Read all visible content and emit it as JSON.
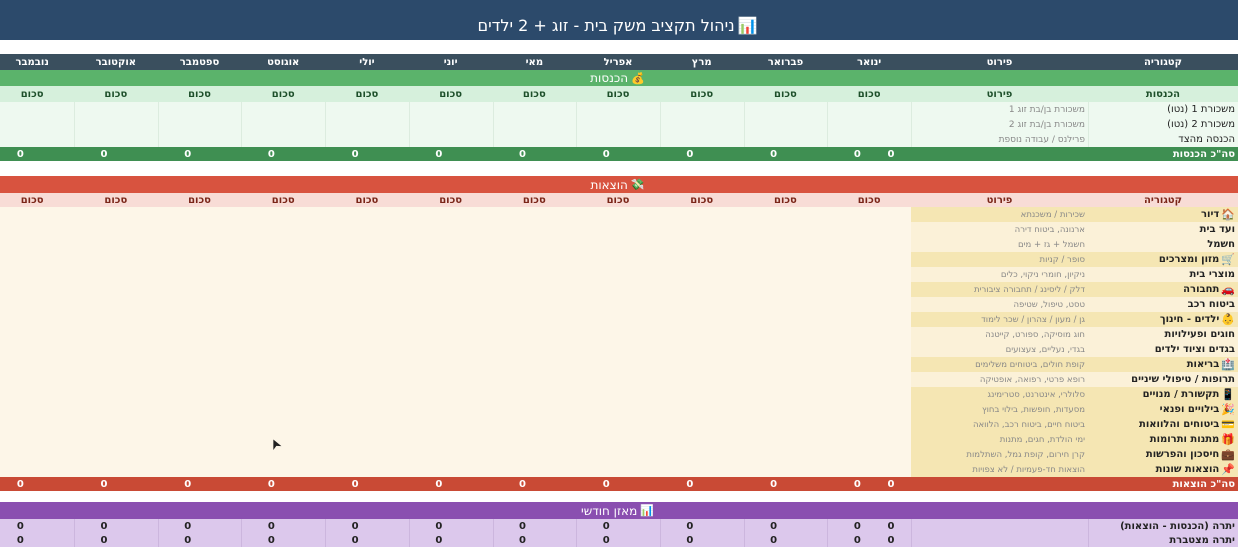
{
  "title": {
    "text": "ניהול תקציב משק בית - זוג + 2 ילדים",
    "icon": "bar-chart-icon"
  },
  "months": [
    "ינואר",
    "פברואר",
    "מרץ",
    "אפריל",
    "מאי",
    "יוני",
    "יולי",
    "אוגוסט",
    "ספטמבר",
    "אוקטובר",
    "נובמבר"
  ],
  "header": {
    "category": "קטגוריה",
    "detail": "פירוט"
  },
  "income": {
    "title": "הכנסות",
    "icon": "money-bag-icon",
    "subheader": {
      "category": "הכנסות",
      "detail": "פירוט",
      "amount": "סכום"
    },
    "rows": [
      {
        "name": "משכורת 1 (נטו)",
        "detail": "משכורת בן/בת זוג 1",
        "icon": ""
      },
      {
        "name": "משכורת 2 (נטו)",
        "detail": "משכורת בן/בת זוג 2",
        "icon": ""
      },
      {
        "name": "הכנסה מהצד",
        "detail": "פרילנס / עבודה נוספת",
        "icon": ""
      }
    ],
    "total_label": "סה\"כ הכנסות",
    "total_value": "0"
  },
  "expenses": {
    "title": "הוצאות",
    "icon": "money-wings-icon",
    "subheader": {
      "category": "קטגוריה",
      "detail": "פירוט",
      "amount": "סכום"
    },
    "rows": [
      {
        "name": "דיור",
        "detail": "שכירות / משכנתא",
        "icon": "house-icon",
        "glyph": "🏠",
        "highlight": true
      },
      {
        "name": "ועד בית",
        "detail": "ארנונה, ביטוח דירה",
        "icon": "",
        "glyph": "",
        "highlight": false
      },
      {
        "name": "חשמל",
        "detail": "חשמל + גז + מים",
        "icon": "",
        "glyph": "",
        "highlight": false
      },
      {
        "name": "מזון ומצרכים",
        "detail": "סופר / קניות",
        "icon": "shopping-cart-icon",
        "glyph": "🛒",
        "highlight": true
      },
      {
        "name": "מוצרי בית",
        "detail": "ניקיון, חומרי ניקוי, כלים",
        "icon": "",
        "glyph": "",
        "highlight": false
      },
      {
        "name": "תחבורה",
        "detail": "דלק / ליסינג / תחבורה ציבורית",
        "icon": "car-icon",
        "glyph": "🚗",
        "highlight": true
      },
      {
        "name": "ביטוח רכב",
        "detail": "טסט, טיפול, שטיפה",
        "icon": "",
        "glyph": "",
        "highlight": false
      },
      {
        "name": "ילדים - חינוך",
        "detail": "גן / מעון / צהרון / שכר לימוד",
        "icon": "child-face-icon",
        "glyph": "👶",
        "highlight": true
      },
      {
        "name": "חוגים ופעילויות",
        "detail": "חוג מוסיקה, ספורט, קייטנה",
        "icon": "",
        "glyph": "",
        "highlight": false
      },
      {
        "name": "בגדים וציוד ילדים",
        "detail": "בגדי, נעליים, צעצועים",
        "icon": "",
        "glyph": "",
        "highlight": false
      },
      {
        "name": "בריאות",
        "detail": "קופת חולים, ביטוחים משלימים",
        "icon": "hospital-icon",
        "glyph": "🏥",
        "highlight": true
      },
      {
        "name": "תרופות / טיפולי שיניים",
        "detail": "רופא פרטי, רפואה, אופטיקה",
        "icon": "",
        "glyph": "",
        "highlight": false
      },
      {
        "name": "תקשורת / מנויים",
        "detail": "סלולרי, אינטרנט, סטרימינג",
        "icon": "mobile-phone-icon",
        "glyph": "📱",
        "highlight": true
      },
      {
        "name": "בילויים ופנאי",
        "detail": "מסעדות, חופשות, בילוי בחוץ",
        "icon": "party-popper-icon",
        "glyph": "🎉",
        "highlight": true
      },
      {
        "name": "ביטוחים והלוואות",
        "detail": "ביטוח חיים, ביטוח רכב, הלוואה",
        "icon": "credit-card-icon",
        "glyph": "💳",
        "highlight": true
      },
      {
        "name": "מתנות ותרומות",
        "detail": "ימי הולדת, חגים, מתנות",
        "icon": "gift-icon",
        "glyph": "🎁",
        "highlight": true
      },
      {
        "name": "חיסכון והפרשות",
        "detail": "קרן חירום, קופת גמל, השתלמות",
        "icon": "briefcase-icon",
        "glyph": "💼",
        "highlight": true
      },
      {
        "name": "הוצאות שונות",
        "detail": "הוצאות חד-פעמיות / לא צפויות",
        "icon": "pushpin-icon",
        "glyph": "📌",
        "highlight": true
      }
    ],
    "total_label": "סה\"כ הוצאות",
    "total_value": "0"
  },
  "balance": {
    "title": "מאזן חודשי",
    "icon": "bar-chart-icon",
    "rows": [
      {
        "name": "יתרה (הכנסות - הוצאות)",
        "value": "0"
      },
      {
        "name": "יתרה מצטברת",
        "value": "0"
      }
    ]
  },
  "colors": {
    "title_bg": "#2c4a6b",
    "header_bg": "#3a4f5e",
    "income_band": "#5bb36b",
    "income_sub": "#d6f0dc",
    "income_body": "#eef9f0",
    "income_total": "#3f8f52",
    "expense_band": "#d8533f",
    "expense_sub": "#f8dcd6",
    "expense_body": "#fdf6e8",
    "expense_highlight": "#f5e6b3",
    "expense_total": "#c94a35",
    "balance_band": "#8a4fb0",
    "balance_body": "#dcc8ec"
  }
}
